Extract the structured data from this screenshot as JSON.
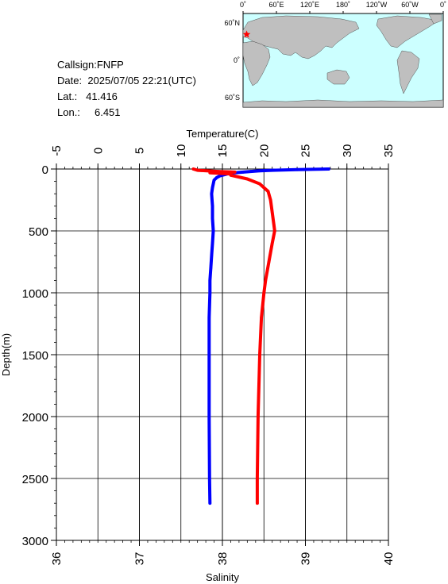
{
  "info": {
    "callsign_label": "Callsign:",
    "callsign": "FNFP",
    "date_label": "Date:",
    "date": "2025/07/05 22:21(UTC)",
    "lat_label": "Lat.:",
    "lat": "41.416",
    "lon_label": "Lon.:",
    "lon": "6.451"
  },
  "map": {
    "top_labels": [
      "0˚",
      "60˚E",
      "120˚E",
      "180˚",
      "120˚W",
      "60˚W",
      "0˚"
    ],
    "left_labels": [
      "60˚N",
      "0˚",
      "60˚S"
    ],
    "ocean_color": "#ccffff",
    "land_color": "#bfbfbf",
    "marker_color": "#ff0000",
    "marker_lon": 6.451,
    "marker_lat": 41.416
  },
  "chart_data": {
    "type": "line",
    "ylabel": "Depth(m)",
    "y_ticks": [
      0,
      500,
      1000,
      1500,
      2000,
      2500,
      3000
    ],
    "ylim": [
      0,
      3000
    ],
    "y_inverted": true,
    "x_top": {
      "label": "Temperature(C)",
      "ticks": [
        -5,
        0,
        5,
        10,
        15,
        20,
        25,
        30,
        35
      ],
      "lim": [
        -5,
        35
      ]
    },
    "x_bottom": {
      "label": "Salinity",
      "ticks": [
        36,
        37,
        38,
        39,
        40
      ],
      "lim": [
        36,
        40
      ]
    },
    "grid": true,
    "series": [
      {
        "color": "#0000ff",
        "axis": "top",
        "points": [
          [
            27.8,
            0
          ],
          [
            24,
            5
          ],
          [
            21,
            10
          ],
          [
            19.5,
            15
          ],
          [
            18.4,
            20
          ],
          [
            17.5,
            25
          ],
          [
            16.5,
            30
          ],
          [
            15.6,
            40
          ],
          [
            14.7,
            55
          ],
          [
            14.3,
            70
          ],
          [
            14.0,
            90
          ],
          [
            13.8,
            150
          ],
          [
            13.7,
            200
          ],
          [
            13.8,
            300
          ],
          [
            13.8,
            400
          ],
          [
            13.9,
            500
          ],
          [
            13.8,
            600
          ],
          [
            13.7,
            700
          ],
          [
            13.6,
            800
          ],
          [
            13.5,
            900
          ],
          [
            13.5,
            1000
          ],
          [
            13.4,
            1200
          ],
          [
            13.4,
            1500
          ],
          [
            13.4,
            2000
          ],
          [
            13.45,
            2500
          ],
          [
            13.5,
            2700
          ]
        ]
      },
      {
        "color": "#ff0000",
        "axis": "bottom",
        "points": [
          [
            37.65,
            0
          ],
          [
            37.7,
            10
          ],
          [
            37.95,
            20
          ],
          [
            38.15,
            25
          ],
          [
            37.85,
            30
          ],
          [
            38.1,
            40
          ],
          [
            38.1,
            50
          ],
          [
            38.3,
            80
          ],
          [
            38.45,
            120
          ],
          [
            38.55,
            180
          ],
          [
            38.58,
            250
          ],
          [
            38.6,
            350
          ],
          [
            38.62,
            450
          ],
          [
            38.63,
            500
          ],
          [
            38.6,
            600
          ],
          [
            38.56,
            750
          ],
          [
            38.52,
            900
          ],
          [
            38.5,
            1000
          ],
          [
            38.47,
            1200
          ],
          [
            38.45,
            1500
          ],
          [
            38.43,
            2000
          ],
          [
            38.42,
            2500
          ],
          [
            38.42,
            2700
          ]
        ]
      }
    ]
  }
}
